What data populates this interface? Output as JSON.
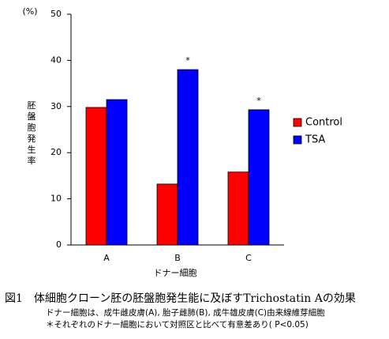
{
  "chart_data": {
    "type": "bar",
    "y_unit": "(%)",
    "ylabel": "胚盤胞発生率",
    "xlabel": "ドナー細胞",
    "categories": [
      "A",
      "B",
      "C"
    ],
    "series": [
      {
        "name": "Control",
        "color": "#ff0000",
        "values": [
          29.8,
          13.2,
          15.8
        ]
      },
      {
        "name": "TSA",
        "color": "#0000ff",
        "values": [
          31.5,
          38,
          29.3
        ]
      }
    ],
    "ylim": [
      0,
      50
    ],
    "yticks": [
      0,
      10,
      20,
      30,
      40,
      50
    ],
    "legend": "right",
    "annotations": [
      {
        "text": "*",
        "category": "B",
        "series": "TSA"
      },
      {
        "text": "*",
        "category": "C",
        "series": "TSA"
      }
    ]
  },
  "caption": "図1　体細胞クローン胚の胚盤胞発生能に及ぼすTrichostatin Aの効果",
  "notes": [
    "ドナー細胞は、成牛雌皮膚(A), 胎子雌肺(B), 成牛雄皮膚(C)由来線維芽細胞",
    "＊それぞれのドナー細胞において対照区と比べて有意差あり( P<0.05)"
  ]
}
